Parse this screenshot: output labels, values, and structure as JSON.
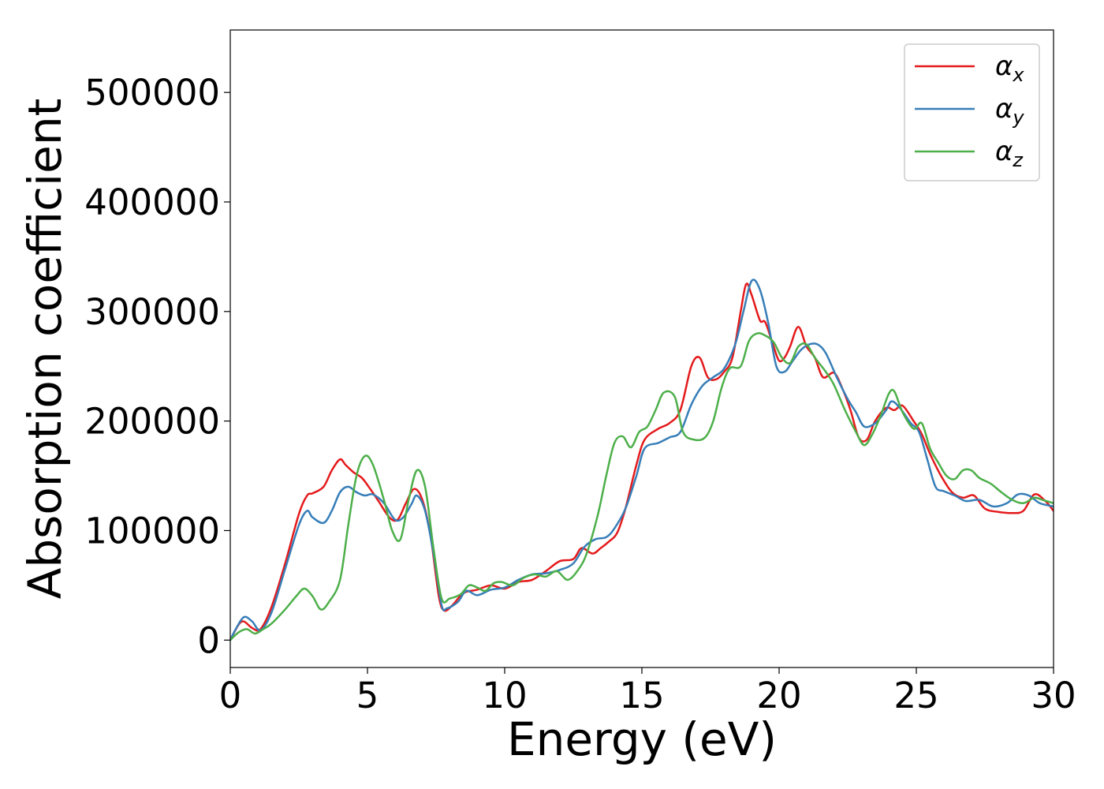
{
  "chart_data": {
    "type": "line",
    "xlabel": "Energy (eV)",
    "ylabel": "Absorption coefficient",
    "xlim": [
      0,
      30
    ],
    "ylim": [
      -25000,
      557000
    ],
    "xticks": [
      0,
      5,
      10,
      15,
      20,
      25,
      30
    ],
    "xtick_labels": [
      "0",
      "5",
      "10",
      "15",
      "20",
      "25",
      "30"
    ],
    "yticks": [
      0,
      100000,
      200000,
      300000,
      400000,
      500000
    ],
    "ytick_labels": [
      "0",
      "100000",
      "200000",
      "300000",
      "400000",
      "500000"
    ],
    "grid": false,
    "legend_position": "top-right",
    "series": [
      {
        "name": "α",
        "subscript": "x",
        "color": "#e41a1c",
        "x": [
          0,
          0.3,
          0.5,
          0.8,
          1.1,
          1.5,
          2.0,
          2.5,
          2.8,
          3.0,
          3.4,
          3.7,
          4.0,
          4.2,
          4.5,
          4.8,
          5.1,
          5.4,
          5.8,
          6.1,
          6.4,
          6.7,
          7.0,
          7.3,
          7.6,
          7.8,
          8.1,
          8.5,
          9.0,
          9.5,
          10.0,
          10.5,
          11.0,
          11.5,
          12.0,
          12.5,
          12.8,
          13.2,
          13.5,
          13.8,
          14.1,
          14.4,
          14.8,
          15.1,
          15.6,
          16.0,
          16.4,
          16.8,
          17.1,
          17.4,
          17.7,
          18.0,
          18.3,
          18.6,
          18.8,
          19.0,
          19.3,
          19.5,
          19.8,
          20.0,
          20.2,
          20.4,
          20.7,
          21.0,
          21.3,
          21.6,
          22.0,
          22.3,
          22.6,
          22.9,
          23.2,
          23.5,
          23.9,
          24.2,
          24.5,
          24.9,
          25.2,
          25.5,
          25.9,
          26.3,
          26.7,
          27.1,
          27.5,
          28.0,
          28.5,
          28.9,
          29.3,
          29.7,
          30.0
        ],
        "values": [
          0,
          14000,
          17000,
          11000,
          10000,
          30000,
          70000,
          115000,
          132000,
          134000,
          140000,
          155000,
          165000,
          160000,
          153000,
          148000,
          138000,
          127000,
          112000,
          110000,
          125000,
          138000,
          128000,
          95000,
          40000,
          27000,
          32000,
          43000,
          46000,
          50000,
          47000,
          53000,
          55000,
          63000,
          72000,
          74000,
          84000,
          79000,
          84000,
          90000,
          98000,
          120000,
          160000,
          183000,
          193000,
          198000,
          210000,
          250000,
          258000,
          240000,
          238000,
          245000,
          258000,
          300000,
          325000,
          315000,
          292000,
          290000,
          268000,
          255000,
          258000,
          268000,
          286000,
          268000,
          258000,
          240000,
          244000,
          230000,
          210000,
          185000,
          183000,
          200000,
          212000,
          210000,
          214000,
          200000,
          188000,
          170000,
          150000,
          135000,
          130000,
          132000,
          120000,
          117000,
          116000,
          118000,
          133000,
          127000,
          118000
        ]
      },
      {
        "name": "α",
        "subscript": "y",
        "color": "#377eb8",
        "x": [
          0,
          0.2,
          0.5,
          0.8,
          1.1,
          1.5,
          2.0,
          2.5,
          2.8,
          3.0,
          3.4,
          3.7,
          4.0,
          4.3,
          4.6,
          4.9,
          5.2,
          5.6,
          6.0,
          6.3,
          6.6,
          6.8,
          7.1,
          7.4,
          7.7,
          7.9,
          8.3,
          8.6,
          9.0,
          9.5,
          10.0,
          10.5,
          11.0,
          11.5,
          12.0,
          12.5,
          12.9,
          13.3,
          13.7,
          14.0,
          14.4,
          14.8,
          15.1,
          15.6,
          16.0,
          16.4,
          16.8,
          17.2,
          17.6,
          18.0,
          18.4,
          18.7,
          19.0,
          19.3,
          19.6,
          19.9,
          20.2,
          20.5,
          20.8,
          21.1,
          21.4,
          21.7,
          22.1,
          22.5,
          22.8,
          23.1,
          23.5,
          23.9,
          24.1,
          24.4,
          24.8,
          25.1,
          25.4,
          25.7,
          26.0,
          26.4,
          26.8,
          27.3,
          27.8,
          28.3,
          28.7,
          29.1,
          29.5,
          30.0
        ],
        "values": [
          0,
          10000,
          21000,
          17000,
          9000,
          25000,
          65000,
          105000,
          118000,
          112000,
          107000,
          118000,
          135000,
          140000,
          135000,
          132000,
          133000,
          125000,
          110000,
          112000,
          124000,
          132000,
          118000,
          80000,
          32000,
          29000,
          35000,
          45000,
          41000,
          46000,
          48000,
          55000,
          60000,
          61000,
          64000,
          70000,
          85000,
          92000,
          94000,
          102000,
          120000,
          150000,
          175000,
          180000,
          185000,
          190000,
          215000,
          232000,
          240000,
          248000,
          270000,
          300000,
          328000,
          320000,
          290000,
          250000,
          245000,
          255000,
          265000,
          270000,
          270000,
          262000,
          240000,
          220000,
          208000,
          195000,
          198000,
          210000,
          218000,
          212000,
          198000,
          190000,
          165000,
          140000,
          136000,
          132000,
          127000,
          128000,
          122000,
          125000,
          133000,
          132000,
          125000,
          122000
        ]
      },
      {
        "name": "α",
        "subscript": "z",
        "color": "#4daf4a",
        "x": [
          0,
          0.3,
          0.6,
          0.9,
          1.2,
          1.5,
          2.0,
          2.4,
          2.7,
          3.0,
          3.3,
          3.6,
          4.0,
          4.3,
          4.6,
          4.9,
          5.2,
          5.6,
          5.9,
          6.2,
          6.5,
          6.8,
          7.1,
          7.4,
          7.7,
          8.0,
          8.4,
          8.7,
          9.0,
          9.3,
          9.6,
          9.9,
          10.3,
          10.7,
          11.1,
          11.5,
          11.9,
          12.3,
          12.7,
          13.0,
          13.4,
          13.7,
          14.0,
          14.3,
          14.6,
          14.9,
          15.2,
          15.5,
          15.8,
          16.2,
          16.5,
          16.9,
          17.3,
          17.6,
          17.9,
          18.2,
          18.6,
          18.9,
          19.2,
          19.5,
          19.8,
          20.1,
          20.4,
          20.7,
          21.0,
          21.3,
          21.7,
          22.0,
          22.4,
          22.8,
          23.1,
          23.4,
          23.7,
          24.0,
          24.2,
          24.5,
          24.9,
          25.2,
          25.5,
          25.8,
          26.1,
          26.4,
          26.7,
          27.0,
          27.3,
          27.7,
          28.1,
          28.5,
          28.9,
          29.3,
          29.6,
          30.0
        ],
        "values": [
          0,
          7000,
          10000,
          6000,
          10000,
          15000,
          28000,
          40000,
          47000,
          40000,
          28000,
          35000,
          55000,
          105000,
          150000,
          168000,
          160000,
          128000,
          100000,
          92000,
          128000,
          155000,
          140000,
          85000,
          38000,
          38000,
          42000,
          50000,
          48000,
          45000,
          52000,
          53000,
          50000,
          57000,
          60000,
          58000,
          63000,
          55000,
          65000,
          80000,
          115000,
          150000,
          180000,
          186000,
          176000,
          190000,
          195000,
          210000,
          226000,
          222000,
          190000,
          183000,
          185000,
          200000,
          230000,
          248000,
          250000,
          273000,
          280000,
          278000,
          272000,
          258000,
          253000,
          268000,
          270000,
          258000,
          245000,
          233000,
          210000,
          190000,
          178000,
          188000,
          205000,
          225000,
          227000,
          208000,
          193000,
          198000,
          175000,
          162000,
          150000,
          147000,
          155000,
          155000,
          148000,
          143000,
          135000,
          128000,
          125000,
          130000,
          128000,
          125000
        ]
      }
    ]
  }
}
